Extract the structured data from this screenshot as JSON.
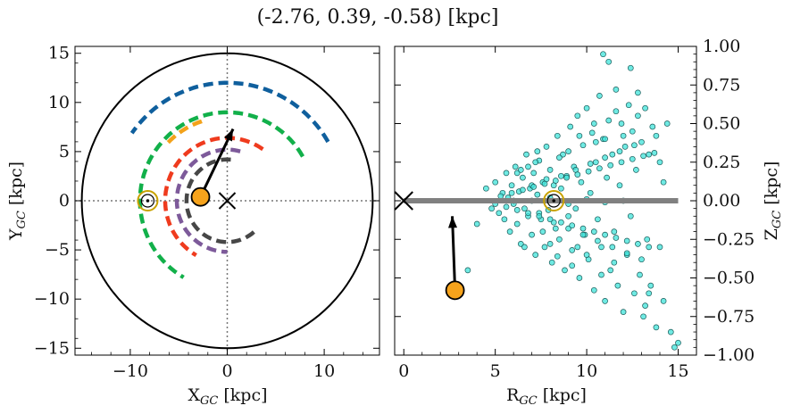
{
  "title": "(-2.76, 0.39, -0.58) [kpc]",
  "colors": {
    "axis": "#000000",
    "circle": "#000000",
    "blue": "#0f5f9d",
    "green": "#12b04a",
    "orange_small": "#f3a21a",
    "red": "#ef3b1e",
    "purple": "#7d5a9a",
    "dark": "#474747",
    "star_fill": "#f6a31c",
    "scatter_fill": "#3fe3da",
    "scatter_edge": "#1a5a58",
    "plane": "#808080",
    "sun": "#c8a200"
  },
  "chart_data": [
    {
      "type": "scatter",
      "panel": "left",
      "xlabel": "X",
      "xlabel_sub": "GC",
      "xlabel_unit": " [kpc]",
      "ylabel": "Y",
      "ylabel_sub": "GC",
      "ylabel_unit": " [kpc]",
      "xlim": [
        -15.7,
        15.7
      ],
      "ylim": [
        -15.7,
        15.7
      ],
      "xticks": [
        {
          "v": -10,
          "label": "−10"
        },
        {
          "v": 0,
          "label": "0"
        },
        {
          "v": 10,
          "label": "10"
        }
      ],
      "yticks": [
        {
          "v": -15,
          "label": "−15"
        },
        {
          "v": -10,
          "label": "−10"
        },
        {
          "v": -5,
          "label": "−5"
        },
        {
          "v": 0,
          "label": "0"
        },
        {
          "v": 5,
          "label": "5"
        },
        {
          "v": 10,
          "label": "10"
        },
        {
          "v": 15,
          "label": "15"
        }
      ],
      "boundary_circle_radius": 15,
      "arms": [
        {
          "color_key": "blue",
          "radius": 12.0,
          "start_deg": 30,
          "end_deg": 145
        },
        {
          "color_key": "green",
          "radius": 9.0,
          "start_deg": 30,
          "end_deg": 240
        },
        {
          "color_key": "orange_small",
          "radius": 8.5,
          "start_deg": 108,
          "end_deg": 136
        },
        {
          "color_key": "red",
          "radius": 6.4,
          "start_deg": 55,
          "end_deg": 240
        },
        {
          "color_key": "purple",
          "radius": 5.2,
          "start_deg": 75,
          "end_deg": 270
        },
        {
          "color_key": "dark",
          "radius": 4.2,
          "start_deg": 85,
          "end_deg": 315
        }
      ],
      "galactic_center": {
        "x": 0,
        "y": 0
      },
      "sun": {
        "x": -8.2,
        "y": 0.0
      },
      "star": {
        "x": -2.76,
        "y": 0.39
      },
      "velocity_arrow_tip": {
        "x": 0.6,
        "y": 7.3
      }
    },
    {
      "type": "scatter",
      "panel": "right",
      "xlabel": "R",
      "xlabel_sub": "GC",
      "xlabel_unit": " [kpc]",
      "ylabel": "Z",
      "ylabel_sub": "GC",
      "ylabel_unit": " [kpc]",
      "xlim": [
        -0.5,
        16.0
      ],
      "ylim": [
        -1.0,
        1.0
      ],
      "xticks": [
        {
          "v": 0,
          "label": "0"
        },
        {
          "v": 5,
          "label": "5"
        },
        {
          "v": 10,
          "label": "10"
        },
        {
          "v": 15,
          "label": "15"
        }
      ],
      "yticks": [
        {
          "v": -1.0,
          "label": "−1.00"
        },
        {
          "v": -0.75,
          "label": "−0.75"
        },
        {
          "v": -0.5,
          "label": "−0.50"
        },
        {
          "v": -0.25,
          "label": "−0.25"
        },
        {
          "v": 0.0,
          "label": "0.00"
        },
        {
          "v": 0.25,
          "label": "0.25"
        },
        {
          "v": 0.5,
          "label": "0.50"
        },
        {
          "v": 0.75,
          "label": "0.75"
        },
        {
          "v": 1.0,
          "label": "1.00"
        }
      ],
      "galactic_plane": {
        "x0": 0,
        "x1": 15,
        "y": 0
      },
      "galactic_center": {
        "x": 0,
        "y": 0
      },
      "sun": {
        "x": 8.2,
        "y": 0.0
      },
      "star": {
        "x": 2.8,
        "y": -0.58
      },
      "velocity_arrow_tip": {
        "x": 2.65,
        "y": -0.1
      },
      "points": [
        [
          3.5,
          -0.45
        ],
        [
          4.0,
          -0.15
        ],
        [
          4.5,
          0.08
        ],
        [
          4.8,
          -0.05
        ],
        [
          5.0,
          0.12
        ],
        [
          5.2,
          -0.08
        ],
        [
          5.4,
          0.05
        ],
        [
          5.5,
          -0.12
        ],
        [
          5.6,
          0.18
        ],
        [
          5.7,
          0.02
        ],
        [
          5.8,
          -0.2
        ],
        [
          5.9,
          0.1
        ],
        [
          6.0,
          -0.02
        ],
        [
          6.1,
          0.22
        ],
        [
          6.2,
          -0.15
        ],
        [
          6.3,
          0.06
        ],
        [
          6.4,
          -0.28
        ],
        [
          6.5,
          0.15
        ],
        [
          6.6,
          -0.05
        ],
        [
          6.7,
          0.3
        ],
        [
          6.8,
          -0.1
        ],
        [
          6.9,
          0.08
        ],
        [
          7.0,
          -0.22
        ],
        [
          7.1,
          0.18
        ],
        [
          7.2,
          -0.35
        ],
        [
          7.3,
          0.04
        ],
        [
          7.4,
          0.26
        ],
        [
          7.5,
          -0.12
        ],
        [
          7.6,
          0.12
        ],
        [
          7.7,
          -0.3
        ],
        [
          7.8,
          0.35
        ],
        [
          7.9,
          -0.06
        ],
        [
          8.0,
          0.2
        ],
        [
          8.1,
          -0.4
        ],
        [
          8.2,
          0.1
        ],
        [
          8.3,
          -0.18
        ],
        [
          8.4,
          0.42
        ],
        [
          8.5,
          -0.25
        ],
        [
          8.6,
          0.08
        ],
        [
          8.7,
          0.3
        ],
        [
          8.8,
          -0.45
        ],
        [
          8.9,
          0.16
        ],
        [
          9.0,
          -0.1
        ],
        [
          9.1,
          0.48
        ],
        [
          9.2,
          -0.32
        ],
        [
          9.3,
          0.22
        ],
        [
          9.4,
          -0.05
        ],
        [
          9.5,
          0.55
        ],
        [
          9.6,
          -0.5
        ],
        [
          9.7,
          0.12
        ],
        [
          9.8,
          0.36
        ],
        [
          9.9,
          -0.22
        ],
        [
          10.0,
          0.6
        ],
        [
          10.1,
          -0.38
        ],
        [
          10.2,
          0.05
        ],
        [
          10.3,
          0.44
        ],
        [
          10.4,
          -0.58
        ],
        [
          10.5,
          0.25
        ],
        [
          10.6,
          -0.12
        ],
        [
          10.7,
          0.68
        ],
        [
          10.8,
          -0.3
        ],
        [
          10.9,
          0.4
        ],
        [
          11.0,
          -0.65
        ],
        [
          11.1,
          0.15
        ],
        [
          11.2,
          0.52
        ],
        [
          11.3,
          -0.45
        ],
        [
          11.4,
          0.3
        ],
        [
          11.5,
          -0.2
        ],
        [
          11.6,
          0.72
        ],
        [
          11.7,
          -0.55
        ],
        [
          11.8,
          0.1
        ],
        [
          11.9,
          0.5
        ],
        [
          12.0,
          -0.72
        ],
        [
          12.1,
          0.35
        ],
        [
          12.2,
          -0.35
        ],
        [
          12.3,
          0.62
        ],
        [
          12.4,
          -0.1
        ],
        [
          12.5,
          0.45
        ],
        [
          12.6,
          -0.6
        ],
        [
          12.7,
          0.2
        ],
        [
          12.8,
          0.55
        ],
        [
          12.9,
          -0.48
        ],
        [
          13.0,
          0.38
        ],
        [
          13.1,
          -0.75
        ],
        [
          13.2,
          0.6
        ],
        [
          13.3,
          -0.25
        ],
        [
          13.4,
          0.3
        ],
        [
          13.5,
          -0.55
        ],
        [
          13.6,
          0.48
        ],
        [
          13.8,
          -0.82
        ],
        [
          14.0,
          0.25
        ],
        [
          14.2,
          -0.65
        ],
        [
          14.4,
          0.5
        ],
        [
          14.6,
          -0.85
        ],
        [
          14.8,
          -0.95
        ],
        [
          15.0,
          -0.92
        ],
        [
          11.2,
          0.9
        ],
        [
          12.4,
          0.86
        ],
        [
          10.9,
          0.95
        ],
        [
          13.4,
          -0.6
        ],
        [
          6.2,
          0.18
        ],
        [
          6.4,
          0.2
        ],
        [
          6.8,
          0.22
        ],
        [
          7.2,
          0.25
        ],
        [
          7.6,
          -0.2
        ],
        [
          8.0,
          -0.28
        ],
        [
          8.5,
          0.28
        ],
        [
          9.0,
          0.32
        ],
        [
          9.5,
          -0.3
        ],
        [
          10.0,
          -0.35
        ],
        [
          10.5,
          0.38
        ],
        [
          11.0,
          0.4
        ],
        [
          11.5,
          -0.4
        ],
        [
          12.0,
          0.42
        ],
        [
          7.0,
          0.1
        ],
        [
          7.4,
          -0.08
        ],
        [
          7.8,
          0.14
        ],
        [
          8.2,
          -0.14
        ],
        [
          8.6,
          0.16
        ],
        [
          9.0,
          -0.18
        ],
        [
          9.4,
          0.2
        ],
        [
          9.8,
          -0.22
        ],
        [
          10.2,
          0.24
        ],
        [
          10.6,
          -0.26
        ],
        [
          11.0,
          0.28
        ],
        [
          11.4,
          -0.3
        ],
        [
          11.8,
          0.32
        ],
        [
          12.2,
          -0.34
        ],
        [
          12.6,
          0.36
        ],
        [
          13.0,
          -0.38
        ],
        [
          5.0,
          -0.02
        ],
        [
          5.3,
          0.03
        ],
        [
          5.6,
          -0.04
        ],
        [
          5.9,
          0.05
        ],
        [
          6.2,
          -0.06
        ],
        [
          6.5,
          0.07
        ],
        [
          6.8,
          -0.08
        ],
        [
          7.1,
          0.09
        ],
        [
          7.4,
          -0.1
        ],
        [
          7.7,
          0.11
        ],
        [
          8.0,
          -0.12
        ],
        [
          8.3,
          0.13
        ],
        [
          8.6,
          -0.14
        ],
        [
          8.9,
          0.15
        ],
        [
          9.2,
          -0.16
        ],
        [
          9.5,
          0.17
        ],
        [
          9.8,
          -0.18
        ],
        [
          10.1,
          0.19
        ],
        [
          10.4,
          -0.2
        ],
        [
          10.7,
          0.21
        ],
        [
          11.0,
          -0.22
        ],
        [
          11.3,
          0.23
        ],
        [
          11.6,
          -0.24
        ],
        [
          11.9,
          0.25
        ],
        [
          12.2,
          -0.26
        ],
        [
          12.5,
          0.27
        ],
        [
          12.8,
          -0.28
        ],
        [
          13.1,
          0.29
        ],
        [
          13.4,
          -0.3
        ],
        [
          13.7,
          0.31
        ],
        [
          6.0,
          0.0
        ],
        [
          7.0,
          0.0
        ],
        [
          8.0,
          0.02
        ],
        [
          9.0,
          -0.02
        ],
        [
          10.0,
          0.01
        ],
        [
          11.0,
          -0.01
        ],
        [
          12.0,
          0.0
        ],
        [
          9.6,
          0.42
        ],
        [
          10.4,
          0.5
        ],
        [
          8.4,
          -0.36
        ],
        [
          9.2,
          -0.42
        ],
        [
          10.8,
          -0.48
        ],
        [
          11.6,
          0.58
        ],
        [
          12.8,
          0.7
        ],
        [
          13.2,
          -0.68
        ],
        [
          14.2,
          0.12
        ],
        [
          14.0,
          -0.3
        ],
        [
          13.8,
          0.42
        ],
        [
          6.6,
          -0.3
        ],
        [
          7.3,
          0.32
        ]
      ]
    }
  ]
}
